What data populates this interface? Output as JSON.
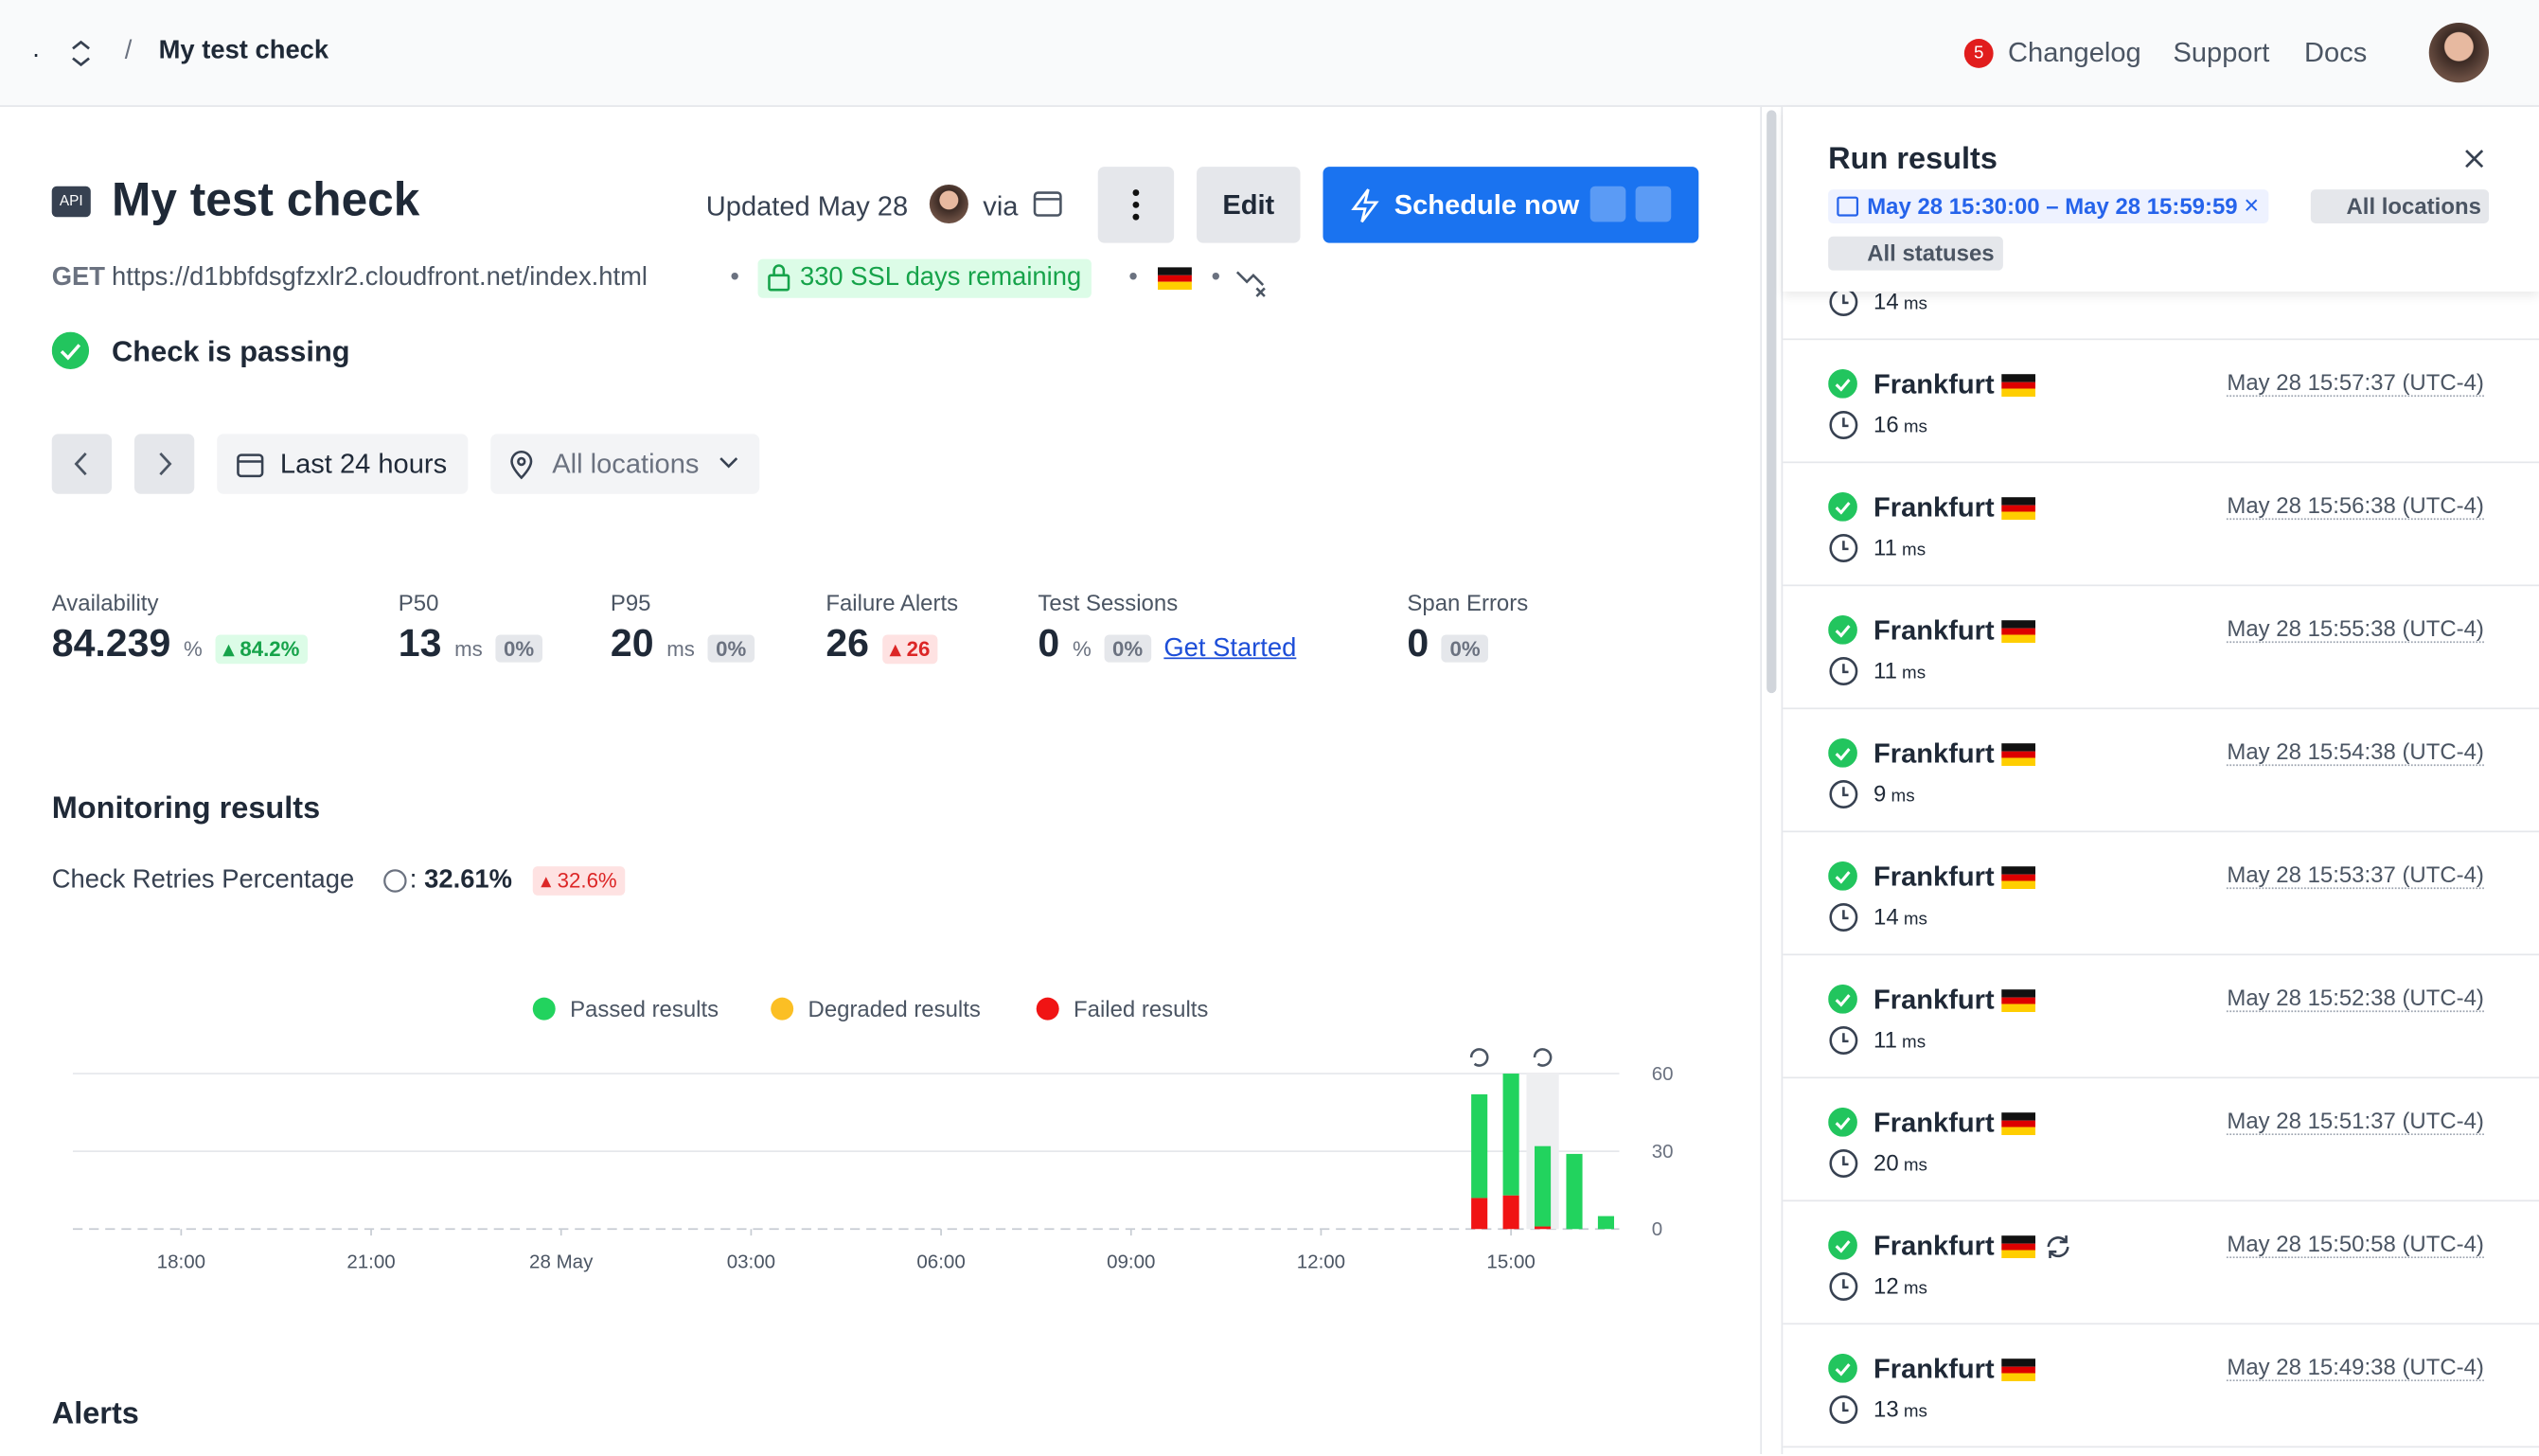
{
  "header": {
    "breadcrumb_root": ".",
    "separator": "/",
    "breadcrumb_current": "My test check",
    "changelog_count": "5",
    "links": [
      "Changelog",
      "Support",
      "Docs"
    ]
  },
  "check": {
    "badge": "API",
    "title": "My test check",
    "updated": "Updated May 28",
    "via": "via",
    "edit": "Edit",
    "schedule": "Schedule now",
    "method": "GET",
    "url": "https://d1bbfdsgfzxlr2.cloudfront.net/index.html",
    "ssl": "330 SSL days remaining",
    "status": "Check is passing"
  },
  "filters": {
    "range": "Last 24 hours",
    "locations": "All locations"
  },
  "stats": [
    {
      "label": "Availability",
      "value": "84.239",
      "unit": "%",
      "change": "84.2%",
      "tone": "good"
    },
    {
      "label": "P50",
      "value": "13",
      "unit": "ms",
      "change": "0%",
      "tone": "neutral"
    },
    {
      "label": "P95",
      "value": "20",
      "unit": "ms",
      "change": "0%",
      "tone": "neutral"
    },
    {
      "label": "Failure Alerts",
      "value": "26",
      "change": "26",
      "tone": "bad"
    },
    {
      "label": "Test Sessions",
      "value": "0",
      "unit": "%",
      "change": "0%",
      "tone": "neutral",
      "link": "Get Started"
    },
    {
      "label": "Span Errors",
      "value": "0",
      "change": "0%",
      "tone": "neutral"
    }
  ],
  "monitoring": {
    "heading": "Monitoring results",
    "retries_label": "Check Retries Percentage",
    "retries_separator": ":",
    "retries_value": "32.61%",
    "retries_change": "32.6%"
  },
  "chart_data": {
    "type": "bar",
    "stacked": true,
    "x": [
      38.5,
      39.0,
      39.5,
      40.0,
      40.5
    ],
    "xlim": [
      16.29,
      40.71
    ],
    "xticks": [
      {
        "value": 18,
        "label": "18:00"
      },
      {
        "value": 21,
        "label": "21:00"
      },
      {
        "value": 24,
        "label": "28 May"
      },
      {
        "value": 27,
        "label": "03:00"
      },
      {
        "value": 30,
        "label": "06:00"
      },
      {
        "value": 33,
        "label": "09:00"
      },
      {
        "value": 36,
        "label": "12:00"
      },
      {
        "value": 39,
        "label": "15:00"
      }
    ],
    "ylim": [
      0,
      60
    ],
    "yticks": [
      0,
      30,
      60
    ],
    "grid": true,
    "series": [
      {
        "name": "Passed results",
        "color": "#22d35e",
        "values": [
          40,
          47,
          31,
          29,
          5
        ]
      },
      {
        "name": "Degraded results",
        "color": "#fbbf24",
        "values": [
          0,
          0,
          0,
          0,
          0
        ]
      },
      {
        "name": "Failed results",
        "color": "#f01414",
        "values": [
          12,
          13,
          1,
          0,
          0
        ]
      }
    ]
  },
  "alerts": {
    "heading": "Alerts"
  },
  "run_results": {
    "title": "Run results",
    "date_filter": "May 28 15:30:00 – May 28 15:59:59",
    "location_filter": "All locations",
    "status_filter": "All statuses",
    "duration_unit": "ms",
    "items": [
      {
        "duration": 14
      },
      {
        "location": "Frankfurt",
        "duration": 16,
        "time": "May 28 15:57:37 (UTC-4)"
      },
      {
        "location": "Frankfurt",
        "duration": 11,
        "time": "May 28 15:56:38 (UTC-4)"
      },
      {
        "location": "Frankfurt",
        "duration": 11,
        "time": "May 28 15:55:38 (UTC-4)"
      },
      {
        "location": "Frankfurt",
        "duration": 9,
        "time": "May 28 15:54:38 (UTC-4)"
      },
      {
        "location": "Frankfurt",
        "duration": 14,
        "time": "May 28 15:53:37 (UTC-4)"
      },
      {
        "location": "Frankfurt",
        "duration": 11,
        "time": "May 28 15:52:38 (UTC-4)"
      },
      {
        "location": "Frankfurt",
        "duration": 20,
        "time": "May 28 15:51:37 (UTC-4)"
      },
      {
        "location": "Frankfurt",
        "duration": 12,
        "time": "May 28 15:50:58 (UTC-4)",
        "retry": true
      },
      {
        "location": "Frankfurt",
        "duration": 13,
        "time": "May 28 15:49:38 (UTC-4)"
      }
    ]
  }
}
